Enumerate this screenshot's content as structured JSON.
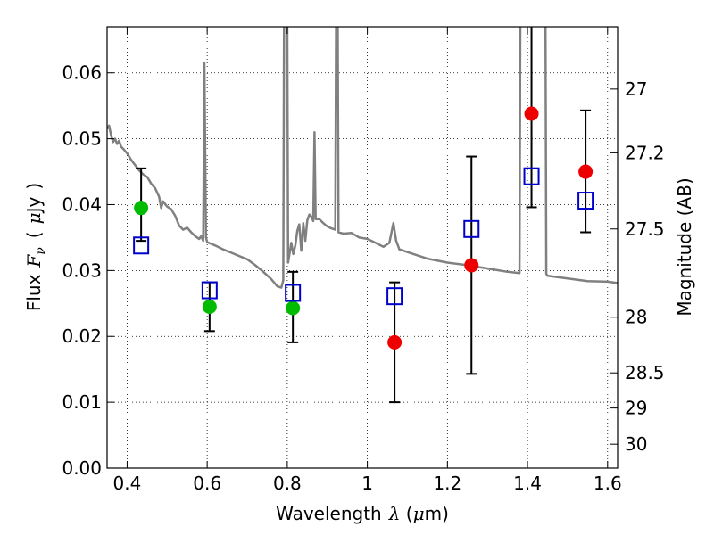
{
  "chart_data": {
    "type": "scatter",
    "title": "",
    "xlabel": {
      "prefix": "Wavelength",
      "symbol": "λ",
      "unit_open": " (",
      "unit_mu": "μ",
      "unit_rest": "m)"
    },
    "ylabel": {
      "prefix": "Flux",
      "symbol": "F",
      "subscript": "ν",
      "unit_open": "(",
      "unit_mu": "μ",
      "unit_rest": "Jy",
      "unit_close": ")"
    },
    "y2label": "Magnitude (AB)",
    "xlim": [
      0.35,
      1.625
    ],
    "ylim": [
      0.0,
      0.067
    ],
    "grid": true,
    "x_ticks": [
      {
        "value": 0.4,
        "label": "0.4"
      },
      {
        "value": 0.6,
        "label": "0.6"
      },
      {
        "value": 0.8,
        "label": "0.8"
      },
      {
        "value": 1.0,
        "label": "1"
      },
      {
        "value": 1.2,
        "label": "1.2"
      },
      {
        "value": 1.4,
        "label": "1.4"
      },
      {
        "value": 1.6,
        "label": "1.6"
      }
    ],
    "y_ticks": [
      {
        "value": 0.0,
        "label": "0.00"
      },
      {
        "value": 0.01,
        "label": "0.01"
      },
      {
        "value": 0.02,
        "label": "0.02"
      },
      {
        "value": 0.03,
        "label": "0.03"
      },
      {
        "value": 0.04,
        "label": "0.04"
      },
      {
        "value": 0.05,
        "label": "0.05"
      },
      {
        "value": 0.06,
        "label": "0.06"
      }
    ],
    "y2_ticks": [
      {
        "value": 27,
        "label": "27"
      },
      {
        "value": 27.2,
        "label": "27.2"
      },
      {
        "value": 27.5,
        "label": "27.5"
      },
      {
        "value": 28,
        "label": "28"
      },
      {
        "value": 28.5,
        "label": "28.5"
      },
      {
        "value": 29,
        "label": "29"
      },
      {
        "value": 30,
        "label": "30"
      }
    ],
    "colors": {
      "model": "#808080",
      "green": "#00bb00",
      "red": "#ee0000",
      "model_box": "#0000cc",
      "errorbar": "#000000"
    },
    "series": [
      {
        "marker": "circle",
        "color": "green",
        "points": [
          {
            "x": 0.435,
            "y": 0.0395,
            "ylo": 0.0345,
            "yhi": 0.0455
          },
          {
            "x": 0.606,
            "y": 0.0245,
            "ylo": 0.0208,
            "yhi": 0.0282
          },
          {
            "x": 0.814,
            "y": 0.0243,
            "ylo": 0.0191,
            "yhi": 0.0298
          }
        ]
      },
      {
        "marker": "circle",
        "color": "red",
        "points": [
          {
            "x": 1.068,
            "y": 0.0191,
            "ylo": 0.01,
            "yhi": 0.0282
          },
          {
            "x": 1.26,
            "y": 0.0308,
            "ylo": 0.0143,
            "yhi": 0.0473
          },
          {
            "x": 1.41,
            "y": 0.0538,
            "ylo": 0.0396,
            "yhi": 0.068
          },
          {
            "x": 1.545,
            "y": 0.045,
            "ylo": 0.0358,
            "yhi": 0.0543
          }
        ]
      },
      {
        "marker": "square",
        "color": "model_box",
        "points": [
          {
            "x": 0.435,
            "y": 0.0338
          },
          {
            "x": 0.606,
            "y": 0.027
          },
          {
            "x": 0.814,
            "y": 0.0266
          },
          {
            "x": 1.068,
            "y": 0.0261
          },
          {
            "x": 1.26,
            "y": 0.0363
          },
          {
            "x": 1.41,
            "y": 0.0443
          },
          {
            "x": 1.545,
            "y": 0.0406
          }
        ]
      }
    ],
    "model_spectrum": [
      [
        0.35,
        0.0515
      ],
      [
        0.355,
        0.052
      ],
      [
        0.36,
        0.0505
      ],
      [
        0.365,
        0.0495
      ],
      [
        0.37,
        0.05
      ],
      [
        0.375,
        0.0492
      ],
      [
        0.38,
        0.0497
      ],
      [
        0.385,
        0.0488
      ],
      [
        0.39,
        0.0485
      ],
      [
        0.4,
        0.0478
      ],
      [
        0.41,
        0.0468
      ],
      [
        0.42,
        0.046
      ],
      [
        0.43,
        0.0452
      ],
      [
        0.44,
        0.0446
      ],
      [
        0.45,
        0.0442
      ],
      [
        0.46,
        0.0432
      ],
      [
        0.47,
        0.0425
      ],
      [
        0.48,
        0.0412
      ],
      [
        0.485,
        0.0395
      ],
      [
        0.49,
        0.0405
      ],
      [
        0.5,
        0.0397
      ],
      [
        0.51,
        0.0393
      ],
      [
        0.52,
        0.0383
      ],
      [
        0.53,
        0.0368
      ],
      [
        0.54,
        0.0362
      ],
      [
        0.55,
        0.0365
      ],
      [
        0.56,
        0.0358
      ],
      [
        0.57,
        0.0352
      ],
      [
        0.58,
        0.0348
      ],
      [
        0.585,
        0.0352
      ],
      [
        0.59,
        0.0345
      ],
      [
        0.593,
        0.0615
      ],
      [
        0.597,
        0.035
      ],
      [
        0.6,
        0.0343
      ],
      [
        0.62,
        0.0338
      ],
      [
        0.64,
        0.0332
      ],
      [
        0.66,
        0.0327
      ],
      [
        0.68,
        0.0322
      ],
      [
        0.7,
        0.0317
      ],
      [
        0.72,
        0.0308
      ],
      [
        0.74,
        0.0298
      ],
      [
        0.76,
        0.0287
      ],
      [
        0.775,
        0.0276
      ],
      [
        0.785,
        0.0274
      ],
      [
        0.79,
        0.0285
      ],
      [
        0.792,
        0.068
      ],
      [
        0.8,
        0.068
      ],
      [
        0.802,
        0.0312
      ],
      [
        0.81,
        0.0342
      ],
      [
        0.815,
        0.0325
      ],
      [
        0.82,
        0.0338
      ],
      [
        0.825,
        0.036
      ],
      [
        0.83,
        0.037
      ],
      [
        0.835,
        0.033
      ],
      [
        0.84,
        0.0372
      ],
      [
        0.845,
        0.0345
      ],
      [
        0.85,
        0.0376
      ],
      [
        0.855,
        0.0385
      ],
      [
        0.86,
        0.0382
      ],
      [
        0.865,
        0.0375
      ],
      [
        0.868,
        0.051
      ],
      [
        0.871,
        0.0378
      ],
      [
        0.88,
        0.0378
      ],
      [
        0.89,
        0.0372
      ],
      [
        0.9,
        0.0367
      ],
      [
        0.91,
        0.0364
      ],
      [
        0.92,
        0.0362
      ],
      [
        0.922,
        0.068
      ],
      [
        0.926,
        0.068
      ],
      [
        0.928,
        0.0358
      ],
      [
        0.94,
        0.0356
      ],
      [
        0.96,
        0.0357
      ],
      [
        0.98,
        0.035
      ],
      [
        1.0,
        0.0348
      ],
      [
        1.02,
        0.0342
      ],
      [
        1.04,
        0.0336
      ],
      [
        1.055,
        0.0342
      ],
      [
        1.065,
        0.0372
      ],
      [
        1.072,
        0.0345
      ],
      [
        1.08,
        0.0332
      ],
      [
        1.1,
        0.0328
      ],
      [
        1.15,
        0.0318
      ],
      [
        1.2,
        0.0312
      ],
      [
        1.25,
        0.0308
      ],
      [
        1.3,
        0.0303
      ],
      [
        1.35,
        0.0298
      ],
      [
        1.38,
        0.0296
      ],
      [
        1.382,
        0.068
      ],
      [
        1.445,
        0.068
      ],
      [
        1.447,
        0.0295
      ],
      [
        1.45,
        0.0292
      ],
      [
        1.5,
        0.0288
      ],
      [
        1.55,
        0.0284
      ],
      [
        1.6,
        0.0283
      ],
      [
        1.625,
        0.0281
      ]
    ]
  }
}
